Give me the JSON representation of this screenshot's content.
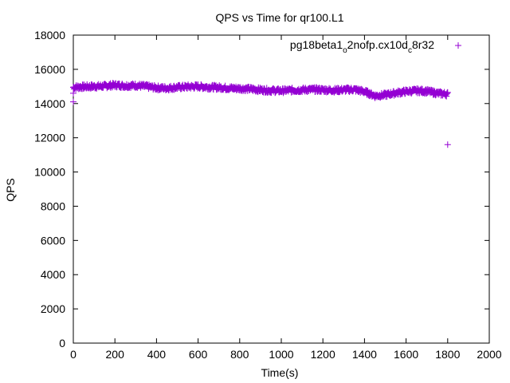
{
  "chart_data": {
    "type": "scatter",
    "title": "QPS vs Time for qr100.L1",
    "xlabel": "Time(s)",
    "ylabel": "QPS",
    "xlim": [
      0,
      2000
    ],
    "ylim": [
      0,
      18000
    ],
    "xticks": [
      0,
      200,
      400,
      600,
      800,
      1000,
      1200,
      1400,
      1600,
      1800,
      2000
    ],
    "yticks": [
      0,
      2000,
      4000,
      6000,
      8000,
      10000,
      12000,
      14000,
      16000,
      18000
    ],
    "grid": false,
    "legend_position": "top-right",
    "marker": "+",
    "series": [
      {
        "name": "pg18beta1_o2nofp.cx10d_c8r32",
        "name_parts": {
          "base": "pg18beta1",
          "sub1": "o",
          "mid": "2nofp.cx10d",
          "sub2": "c",
          "end": "8r32"
        },
        "color": "#9400d3",
        "trend": [
          [
            0,
            14950
          ],
          [
            50,
            14980
          ],
          [
            100,
            15000
          ],
          [
            150,
            15020
          ],
          [
            200,
            15080
          ],
          [
            250,
            15040
          ],
          [
            300,
            15060
          ],
          [
            350,
            15000
          ],
          [
            400,
            14920
          ],
          [
            450,
            14900
          ],
          [
            500,
            14950
          ],
          [
            550,
            14980
          ],
          [
            600,
            15000
          ],
          [
            650,
            14960
          ],
          [
            700,
            14940
          ],
          [
            750,
            14900
          ],
          [
            800,
            14880
          ],
          [
            850,
            14850
          ],
          [
            900,
            14800
          ],
          [
            950,
            14760
          ],
          [
            1000,
            14750
          ],
          [
            1050,
            14780
          ],
          [
            1100,
            14800
          ],
          [
            1150,
            14820
          ],
          [
            1200,
            14800
          ],
          [
            1250,
            14780
          ],
          [
            1300,
            14800
          ],
          [
            1350,
            14820
          ],
          [
            1400,
            14700
          ],
          [
            1450,
            14450
          ],
          [
            1500,
            14500
          ],
          [
            1550,
            14620
          ],
          [
            1600,
            14700
          ],
          [
            1650,
            14750
          ],
          [
            1700,
            14720
          ],
          [
            1750,
            14600
          ],
          [
            1800,
            14550
          ]
        ],
        "outliers": [
          [
            0,
            14100
          ],
          [
            0,
            14600
          ],
          [
            1800,
            11600
          ]
        ]
      }
    ]
  }
}
